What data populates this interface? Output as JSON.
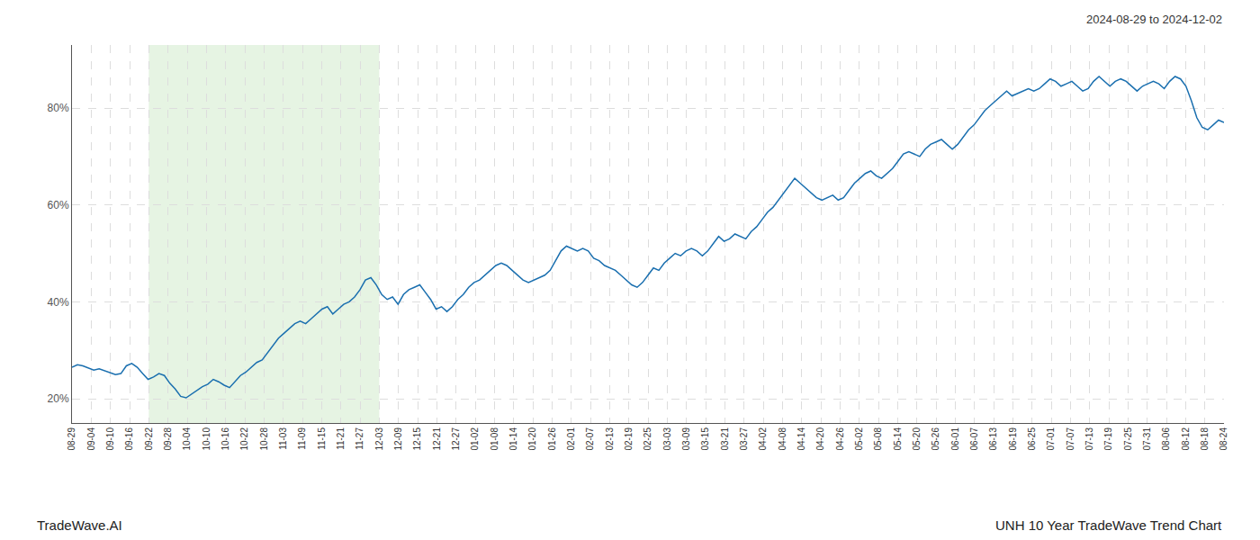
{
  "chart_data": {
    "type": "line",
    "annotations": [
      "2024-08-29 to 2024-12-02",
      "TradeWave.AI",
      "UNH 10 Year TradeWave Trend Chart"
    ],
    "color": "#1a6faf",
    "grid": true,
    "shade": {
      "from": "09-22",
      "to": "12-03",
      "color": "#c8e6c0"
    },
    "ylim": [
      15,
      93
    ],
    "yticks": [
      {
        "value": 20,
        "label": "20%"
      },
      {
        "value": 40,
        "label": "40%"
      },
      {
        "value": 60,
        "label": "60%"
      },
      {
        "value": 80,
        "label": "80%"
      }
    ],
    "xlim": [
      0,
      212
    ],
    "xticks": [
      {
        "value": 0,
        "label": "08-29"
      },
      {
        "value": 3.533333333333333,
        "label": "09-04"
      },
      {
        "value": 7.066666666666666,
        "label": "09-10"
      },
      {
        "value": 10.6,
        "label": "09-16"
      },
      {
        "value": 14.133333333333333,
        "label": "09-22"
      },
      {
        "value": 17.666666666666668,
        "label": "09-28"
      },
      {
        "value": 21.2,
        "label": "10-04"
      },
      {
        "value": 24.733333333333334,
        "label": "10-10"
      },
      {
        "value": 28.266666666666666,
        "label": "10-16"
      },
      {
        "value": 31.8,
        "label": "10-22"
      },
      {
        "value": 35.333333333333336,
        "label": "10-28"
      },
      {
        "value": 38.86666666666667,
        "label": "11-03"
      },
      {
        "value": 42.4,
        "label": "11-09"
      },
      {
        "value": 45.93333333333333,
        "label": "11-15"
      },
      {
        "value": 49.46666666666667,
        "label": "11-21"
      },
      {
        "value": 53,
        "label": "11-27"
      },
      {
        "value": 56.53333333333333,
        "label": "12-03"
      },
      {
        "value": 60.06666666666667,
        "label": "12-09"
      },
      {
        "value": 63.6,
        "label": "12-15"
      },
      {
        "value": 67.13333333333334,
        "label": "12-21"
      },
      {
        "value": 70.66666666666667,
        "label": "12-27"
      },
      {
        "value": 74.2,
        "label": "01-02"
      },
      {
        "value": 77.73333333333333,
        "label": "01-08"
      },
      {
        "value": 81.26666666666667,
        "label": "01-14"
      },
      {
        "value": 84.8,
        "label": "01-20"
      },
      {
        "value": 88.33333333333333,
        "label": "01-26"
      },
      {
        "value": 91.86666666666666,
        "label": "02-01"
      },
      {
        "value": 95.4,
        "label": "02-07"
      },
      {
        "value": 98.93333333333334,
        "label": "02-13"
      },
      {
        "value": 102.46666666666667,
        "label": "02-19"
      },
      {
        "value": 106,
        "label": "02-25"
      },
      {
        "value": 109.53333333333333,
        "label": "03-03"
      },
      {
        "value": 113.06666666666666,
        "label": "03-09"
      },
      {
        "value": 116.6,
        "label": "03-15"
      },
      {
        "value": 120.13333333333334,
        "label": "03-21"
      },
      {
        "value": 123.66666666666667,
        "label": "03-27"
      },
      {
        "value": 127.2,
        "label": "04-02"
      },
      {
        "value": 130.73333333333332,
        "label": "04-08"
      },
      {
        "value": 134.26666666666668,
        "label": "04-14"
      },
      {
        "value": 137.8,
        "label": "04-20"
      },
      {
        "value": 141.33333333333334,
        "label": "04-26"
      },
      {
        "value": 144.86666666666667,
        "label": "05-02"
      },
      {
        "value": 148.4,
        "label": "05-08"
      },
      {
        "value": 151.93333333333334,
        "label": "05-14"
      },
      {
        "value": 155.46666666666667,
        "label": "05-20"
      },
      {
        "value": 159,
        "label": "05-26"
      },
      {
        "value": 162.53333333333333,
        "label": "06-01"
      },
      {
        "value": 166.06666666666666,
        "label": "06-07"
      },
      {
        "value": 169.6,
        "label": "06-13"
      },
      {
        "value": 173.13333333333333,
        "label": "06-19"
      },
      {
        "value": 176.66666666666666,
        "label": "06-25"
      },
      {
        "value": 180.2,
        "label": "07-01"
      },
      {
        "value": 183.73333333333332,
        "label": "07-07"
      },
      {
        "value": 187.26666666666668,
        "label": "07-13"
      },
      {
        "value": 190.8,
        "label": "07-19"
      },
      {
        "value": 194.33333333333334,
        "label": "07-25"
      },
      {
        "value": 197.86666666666667,
        "label": "07-31"
      },
      {
        "value": 201.4,
        "label": "08-06"
      },
      {
        "value": 204.93333333333334,
        "label": "08-12"
      },
      {
        "value": 208.46666666666667,
        "label": "08-18"
      },
      {
        "value": 212,
        "label": "08-24"
      }
    ],
    "x": [
      0,
      1,
      2,
      3,
      4,
      5,
      6,
      7,
      8,
      9,
      10,
      11,
      12,
      13,
      14,
      15,
      16,
      17,
      18,
      19,
      20,
      21,
      22,
      23,
      24,
      25,
      26,
      27,
      28,
      29,
      30,
      31,
      32,
      33,
      34,
      35,
      36,
      37,
      38,
      39,
      40,
      41,
      42,
      43,
      44,
      45,
      46,
      47,
      48,
      49,
      50,
      51,
      52,
      53,
      54,
      55,
      56,
      57,
      58,
      59,
      60,
      61,
      62,
      63,
      64,
      65,
      66,
      67,
      68,
      69,
      70,
      71,
      72,
      73,
      74,
      75,
      76,
      77,
      78,
      79,
      80,
      81,
      82,
      83,
      84,
      85,
      86,
      87,
      88,
      89,
      90,
      91,
      92,
      93,
      94,
      95,
      96,
      97,
      98,
      99,
      100,
      101,
      102,
      103,
      104,
      105,
      106,
      107,
      108,
      109,
      110,
      111,
      112,
      113,
      114,
      115,
      116,
      117,
      118,
      119,
      120,
      121,
      122,
      123,
      124,
      125,
      126,
      127,
      128,
      129,
      130,
      131,
      132,
      133,
      134,
      135,
      136,
      137,
      138,
      139,
      140,
      141,
      142,
      143,
      144,
      145,
      146,
      147,
      148,
      149,
      150,
      151,
      152,
      153,
      154,
      155,
      156,
      157,
      158,
      159,
      160,
      161,
      162,
      163,
      164,
      165,
      166,
      167,
      168,
      169,
      170,
      171,
      172,
      173,
      174,
      175,
      176,
      177,
      178,
      179,
      180,
      181,
      182,
      183,
      184,
      185,
      186,
      187,
      188,
      189,
      190,
      191,
      192,
      193,
      194,
      195,
      196,
      197,
      198,
      199,
      200,
      201,
      202,
      203,
      204,
      205,
      206,
      207,
      208,
      209,
      210,
      211,
      212
    ],
    "values": [
      26.5,
      27.0,
      26.8,
      26.3,
      25.9,
      26.2,
      25.8,
      25.3,
      25.0,
      25.2,
      26.8,
      27.3,
      26.5,
      25.2,
      24.0,
      24.5,
      25.2,
      24.8,
      23.2,
      22.0,
      20.5,
      20.2,
      21.0,
      21.8,
      22.5,
      23.0,
      24.0,
      23.5,
      22.8,
      22.3,
      23.5,
      24.8,
      25.5,
      26.5,
      27.5,
      28.0,
      29.5,
      31.0,
      32.5,
      33.5,
      34.5,
      35.5,
      36.0,
      35.5,
      36.5,
      37.5,
      38.5,
      39.0,
      37.5,
      38.5,
      39.5,
      40.0,
      41.0,
      42.5,
      44.5,
      45.0,
      43.5,
      41.5,
      40.5,
      41.0,
      39.5,
      41.5,
      42.5,
      43.0,
      43.5,
      42.0,
      40.5,
      38.5,
      39.0,
      38.0,
      39.0,
      40.5,
      41.5,
      43.0,
      44.0,
      44.5,
      45.5,
      46.5,
      47.5,
      48.0,
      47.5,
      46.5,
      45.5,
      44.5,
      44.0,
      44.5,
      45.0,
      45.5,
      46.5,
      48.5,
      50.5,
      51.5,
      51.0,
      50.5,
      51.0,
      50.5,
      49.0,
      48.5,
      47.5,
      47.0,
      46.5,
      45.5,
      44.5,
      43.5,
      43.0,
      44.0,
      45.5,
      47.0,
      46.5,
      48.0,
      49.0,
      50.0,
      49.5,
      50.5,
      51.0,
      50.5,
      49.5,
      50.5,
      52.0,
      53.5,
      52.5,
      53.0,
      54.0,
      53.5,
      53.0,
      54.5,
      55.5,
      57.0,
      58.5,
      59.5,
      61.0,
      62.5,
      64.0,
      65.5,
      64.5,
      63.5,
      62.5,
      61.5,
      61.0,
      61.5,
      62.0,
      61.0,
      61.5,
      63.0,
      64.5,
      65.5,
      66.5,
      67.0,
      66.0,
      65.5,
      66.5,
      67.5,
      69.0,
      70.5,
      71.0,
      70.5,
      70.0,
      71.5,
      72.5,
      73.0,
      73.5,
      72.5,
      71.5,
      72.5,
      74.0,
      75.5,
      76.5,
      78.0,
      79.5,
      80.5,
      81.5,
      82.5,
      83.5,
      82.5,
      83.0,
      83.5,
      84.0,
      83.5,
      84.0,
      85.0,
      86.0,
      85.5,
      84.5,
      85.0,
      85.5,
      84.5,
      83.5,
      84.0,
      85.5,
      86.5,
      85.5,
      84.5,
      85.5,
      86.0,
      85.5,
      84.5,
      83.5,
      84.5,
      85.0,
      85.5,
      85.0,
      84.0,
      85.5,
      86.5,
      86.0,
      84.5,
      81.5,
      78.0,
      76.0,
      75.5,
      76.5,
      77.5,
      77.0
    ]
  }
}
